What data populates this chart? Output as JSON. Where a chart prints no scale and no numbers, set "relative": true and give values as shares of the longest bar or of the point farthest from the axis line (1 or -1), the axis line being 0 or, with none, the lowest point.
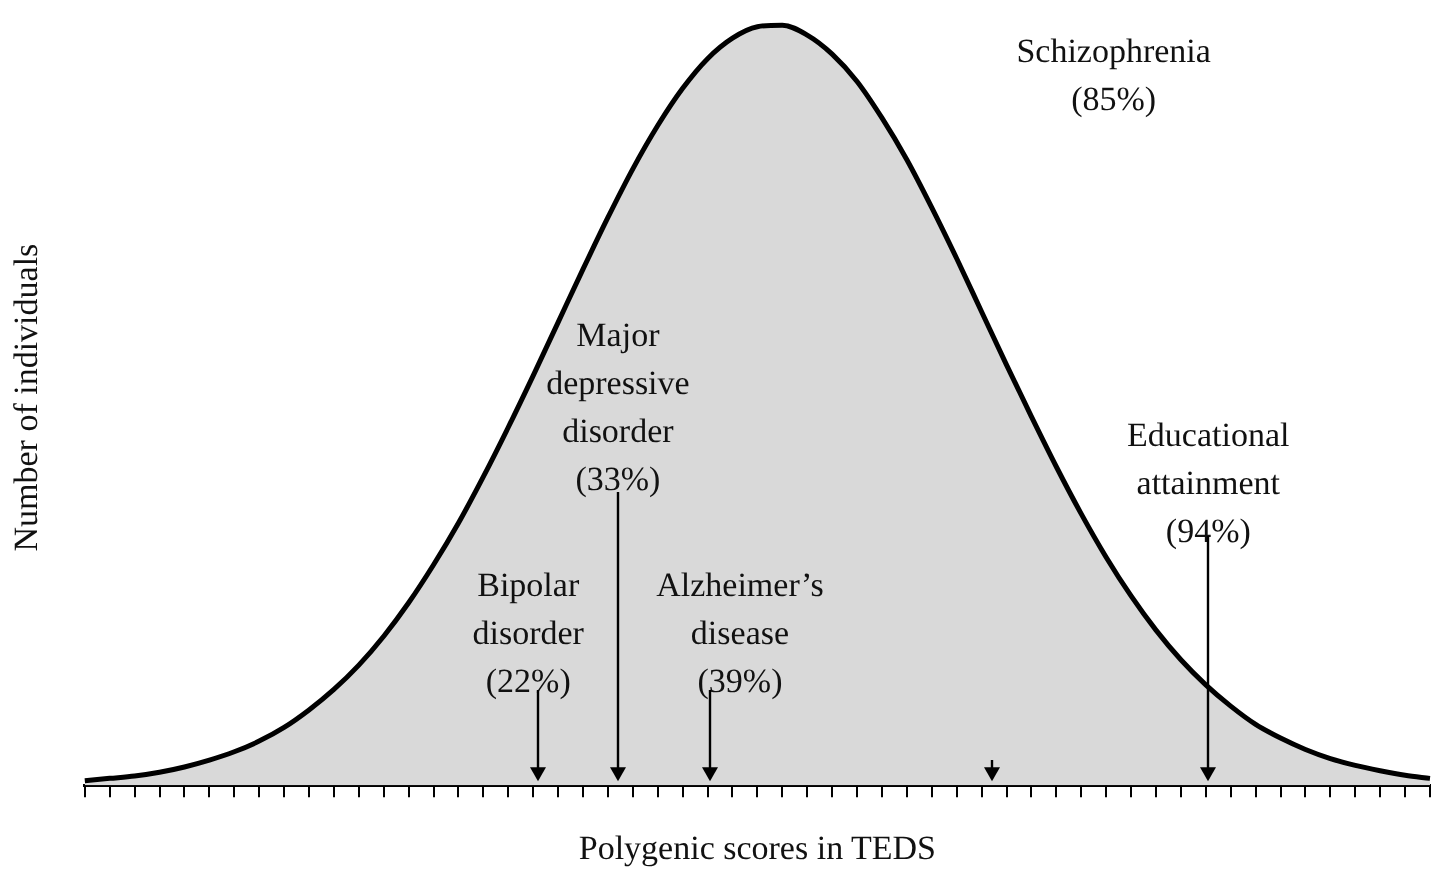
{
  "chart_data": {
    "type": "area",
    "relative": true,
    "xlabel": "Polygenic scores in TEDS",
    "ylabel": "Number of individuals",
    "color": "#d9d9d9",
    "grid": false,
    "legend": false,
    "tick_labels": false,
    "categories": [
      null,
      null,
      null,
      null,
      null,
      null,
      null,
      null,
      null,
      null,
      null,
      null,
      null,
      null,
      null,
      null,
      null,
      null,
      null,
      null,
      null,
      null,
      null,
      null,
      null,
      null,
      null,
      null,
      null,
      null,
      null,
      null,
      null,
      null,
      null,
      null,
      null,
      null,
      null,
      null,
      null,
      null,
      null,
      null,
      null,
      null,
      null,
      null,
      null,
      null,
      null,
      null,
      null,
      null,
      null
    ],
    "values": [
      0.006,
      0.009,
      0.012,
      0.017,
      0.024,
      0.033,
      0.044,
      0.058,
      0.076,
      0.099,
      0.126,
      0.158,
      0.196,
      0.24,
      0.29,
      0.345,
      0.406,
      0.471,
      0.539,
      0.609,
      0.679,
      0.747,
      0.811,
      0.868,
      0.917,
      0.956,
      0.983,
      0.998,
      1,
      0.987,
      0.962,
      0.926,
      0.878,
      0.823,
      0.76,
      0.693,
      0.623,
      0.553,
      0.485,
      0.419,
      0.357,
      0.3,
      0.249,
      0.204,
      0.165,
      0.132,
      0.104,
      0.08,
      0.062,
      0.047,
      0.035,
      0.026,
      0.019,
      0.013,
      0.009
    ],
    "annotations": [
      "Schizophrenia\n(85%)",
      "Major\ndepressive\ndisorder\n(33%)",
      "Educational\nattainment\n(94%)",
      "Bipolar\ndisorder\n(22%)",
      "Alzheimer’s\ndisease\n(39%)"
    ]
  }
}
